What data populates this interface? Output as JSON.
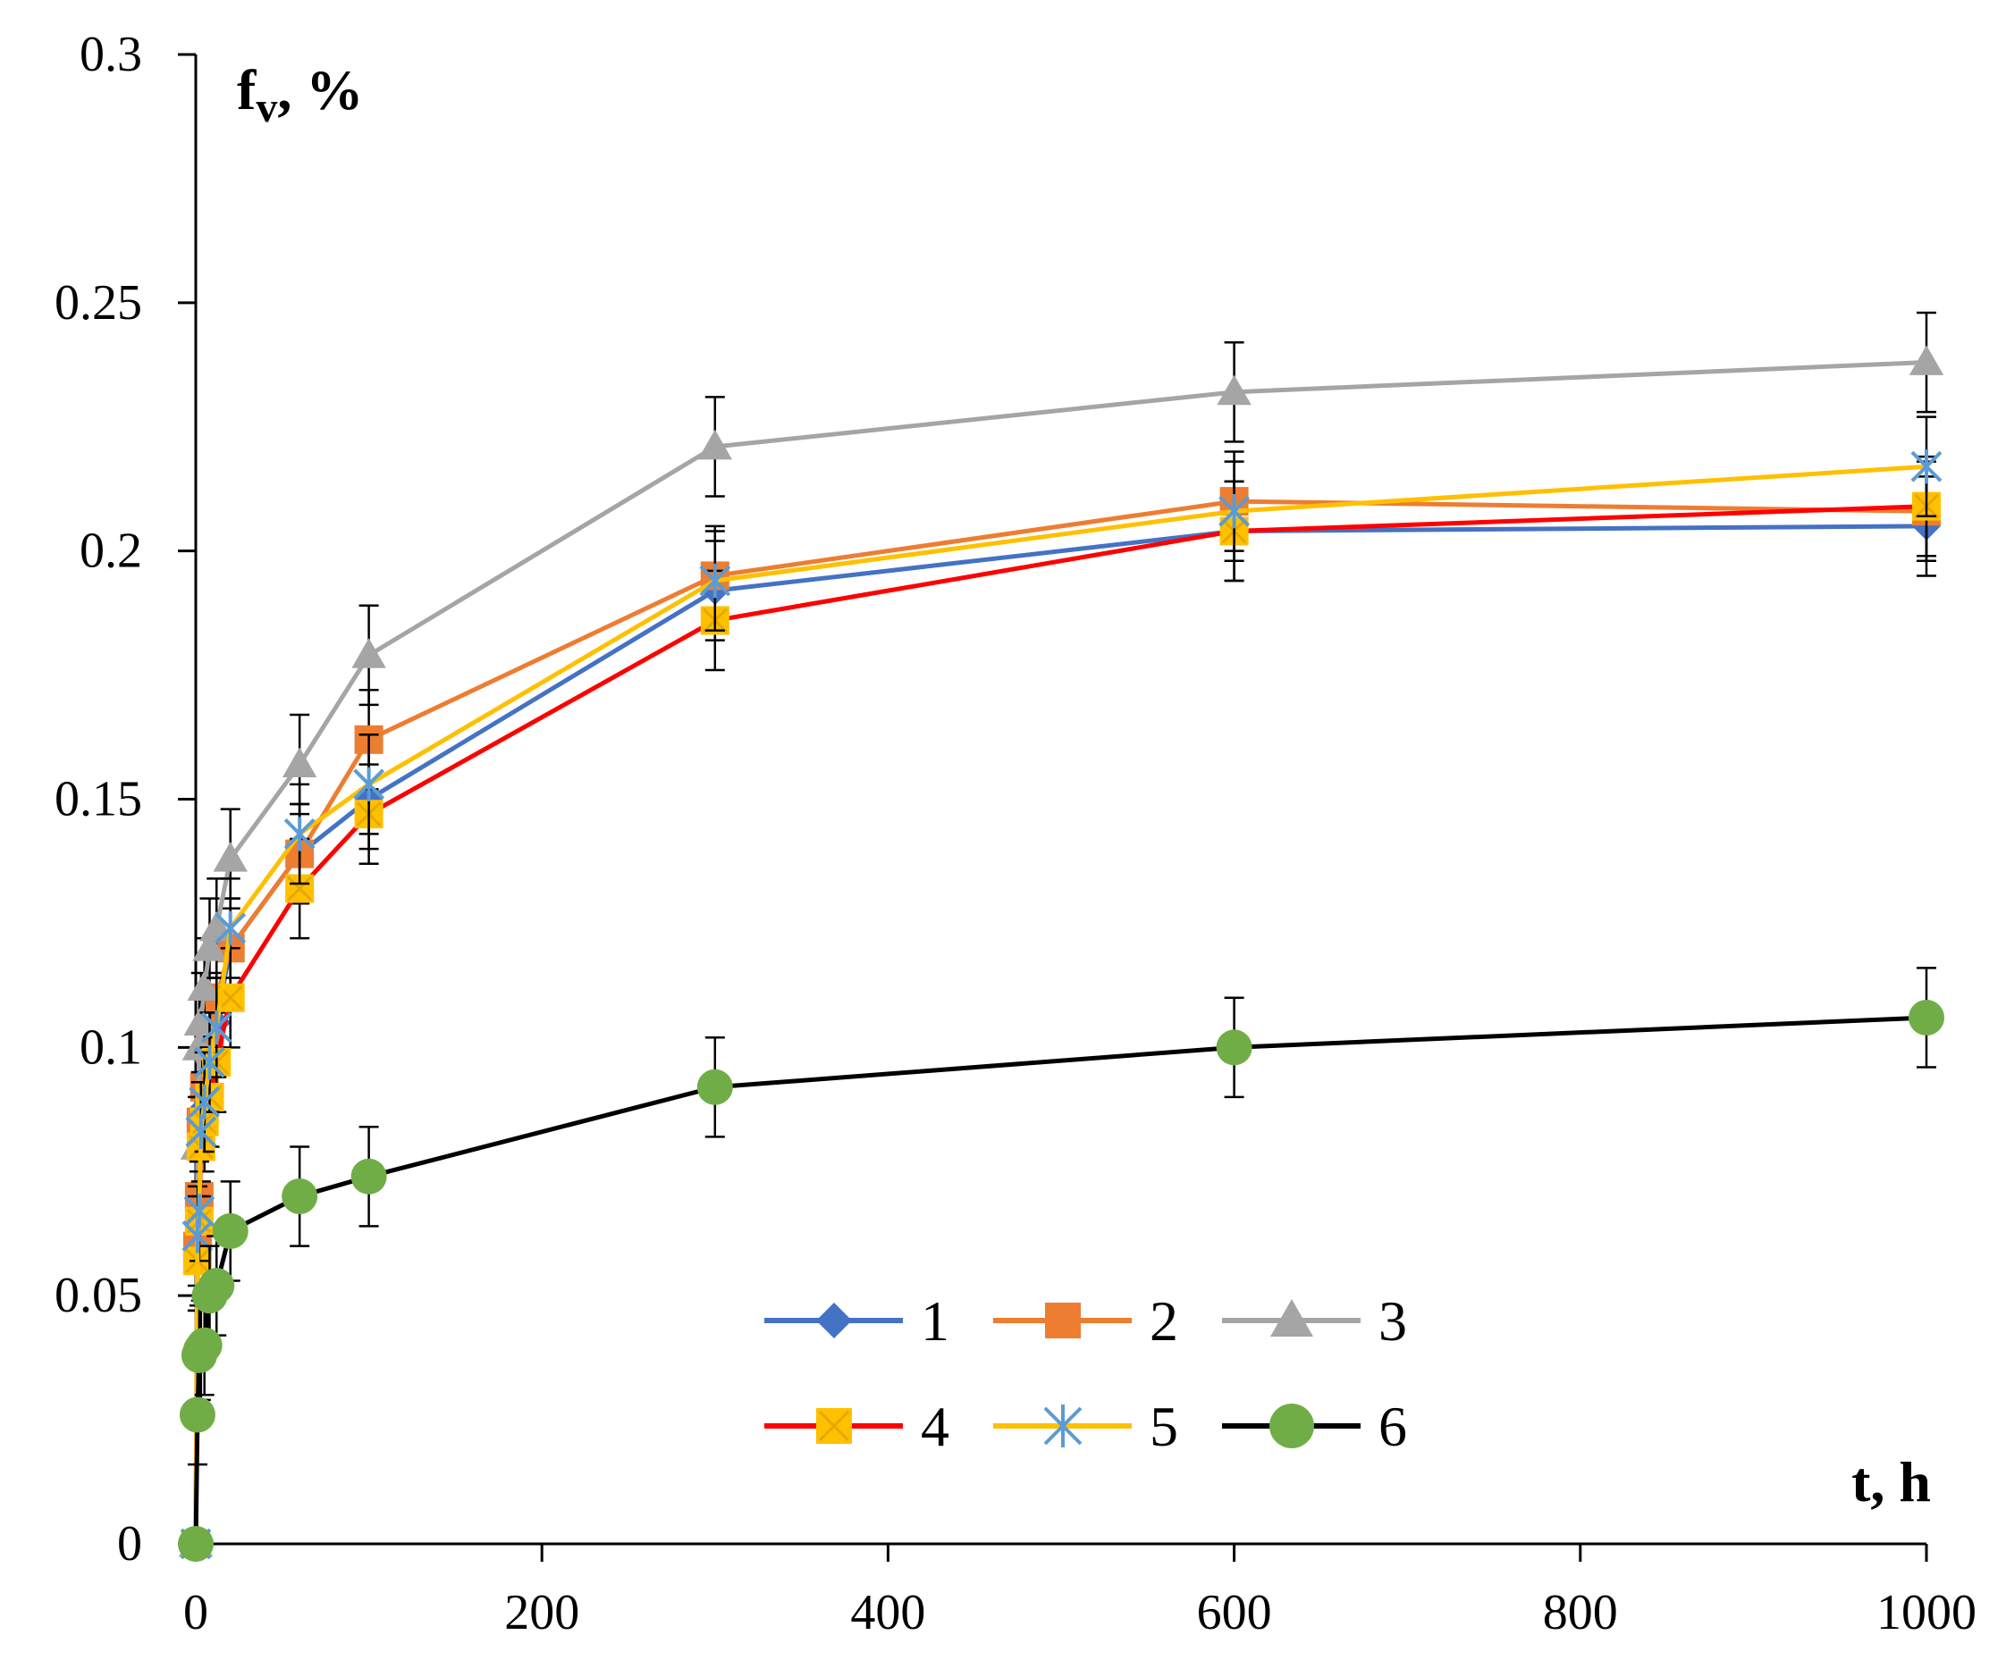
{
  "chart_data": {
    "type": "line",
    "title": "",
    "xlabel": "t, h",
    "ylabel": "fv, %",
    "ylabel_main": "f",
    "ylabel_sub": "v",
    "ylabel_rest": ", %",
    "xlim": [
      0,
      1000
    ],
    "ylim": [
      0,
      0.3
    ],
    "xticks": [
      0,
      200,
      400,
      600,
      800,
      1000
    ],
    "xtick_labels": [
      "0",
      "200",
      "400",
      "600",
      "800",
      "1000"
    ],
    "yticks": [
      0,
      0.05,
      0.1,
      0.15,
      0.2,
      0.25,
      0.3
    ],
    "ytick_labels": [
      "0",
      "0.05",
      "0.1",
      "0.15",
      "0.2",
      "0.25",
      "0.3"
    ],
    "grid": false,
    "legend_position": "bottom-center",
    "error_bar": 0.01,
    "x": [
      0,
      1,
      2,
      3,
      5,
      8,
      12,
      20,
      60,
      100,
      300,
      600,
      1000
    ],
    "series": [
      {
        "name": "1",
        "color": "#4472C4",
        "marker": "diamond",
        "values": [
          0,
          0.057,
          0.068,
          0.08,
          0.088,
          0.097,
          0.105,
          0.12,
          0.139,
          0.15,
          0.192,
          0.204,
          0.205
        ]
      },
      {
        "name": "2",
        "color": "#ED7D31",
        "marker": "square",
        "values": [
          0,
          0.06,
          0.07,
          0.085,
          0.092,
          0.1,
          0.11,
          0.12,
          0.139,
          0.162,
          0.195,
          0.21,
          0.208
        ]
      },
      {
        "name": "3",
        "color": "#A5A5A5",
        "marker": "triangle",
        "values": [
          0,
          0.08,
          0.1,
          0.105,
          0.112,
          0.12,
          0.124,
          0.138,
          0.157,
          0.179,
          0.221,
          0.232,
          0.238
        ]
      },
      {
        "name": "4",
        "color": "#FF0000",
        "marker": "square-x",
        "marker_color": "#FFC000",
        "values": [
          0,
          0.057,
          0.065,
          0.08,
          0.085,
          0.09,
          0.097,
          0.11,
          0.132,
          0.147,
          0.186,
          0.204,
          0.209
        ]
      },
      {
        "name": "5",
        "color": "#FFC000",
        "marker": "star",
        "marker_color": "#5B9BD5",
        "values": [
          0,
          0.062,
          0.067,
          0.083,
          0.089,
          0.097,
          0.104,
          0.124,
          0.143,
          0.153,
          0.194,
          0.208,
          0.217
        ]
      },
      {
        "name": "6",
        "color": "#000000",
        "marker": "circle",
        "marker_color": "#70AD47",
        "values": [
          0,
          0.026,
          0.038,
          0.039,
          0.04,
          0.05,
          0.052,
          0.063,
          0.07,
          0.074,
          0.092,
          0.1,
          0.106
        ]
      }
    ]
  }
}
